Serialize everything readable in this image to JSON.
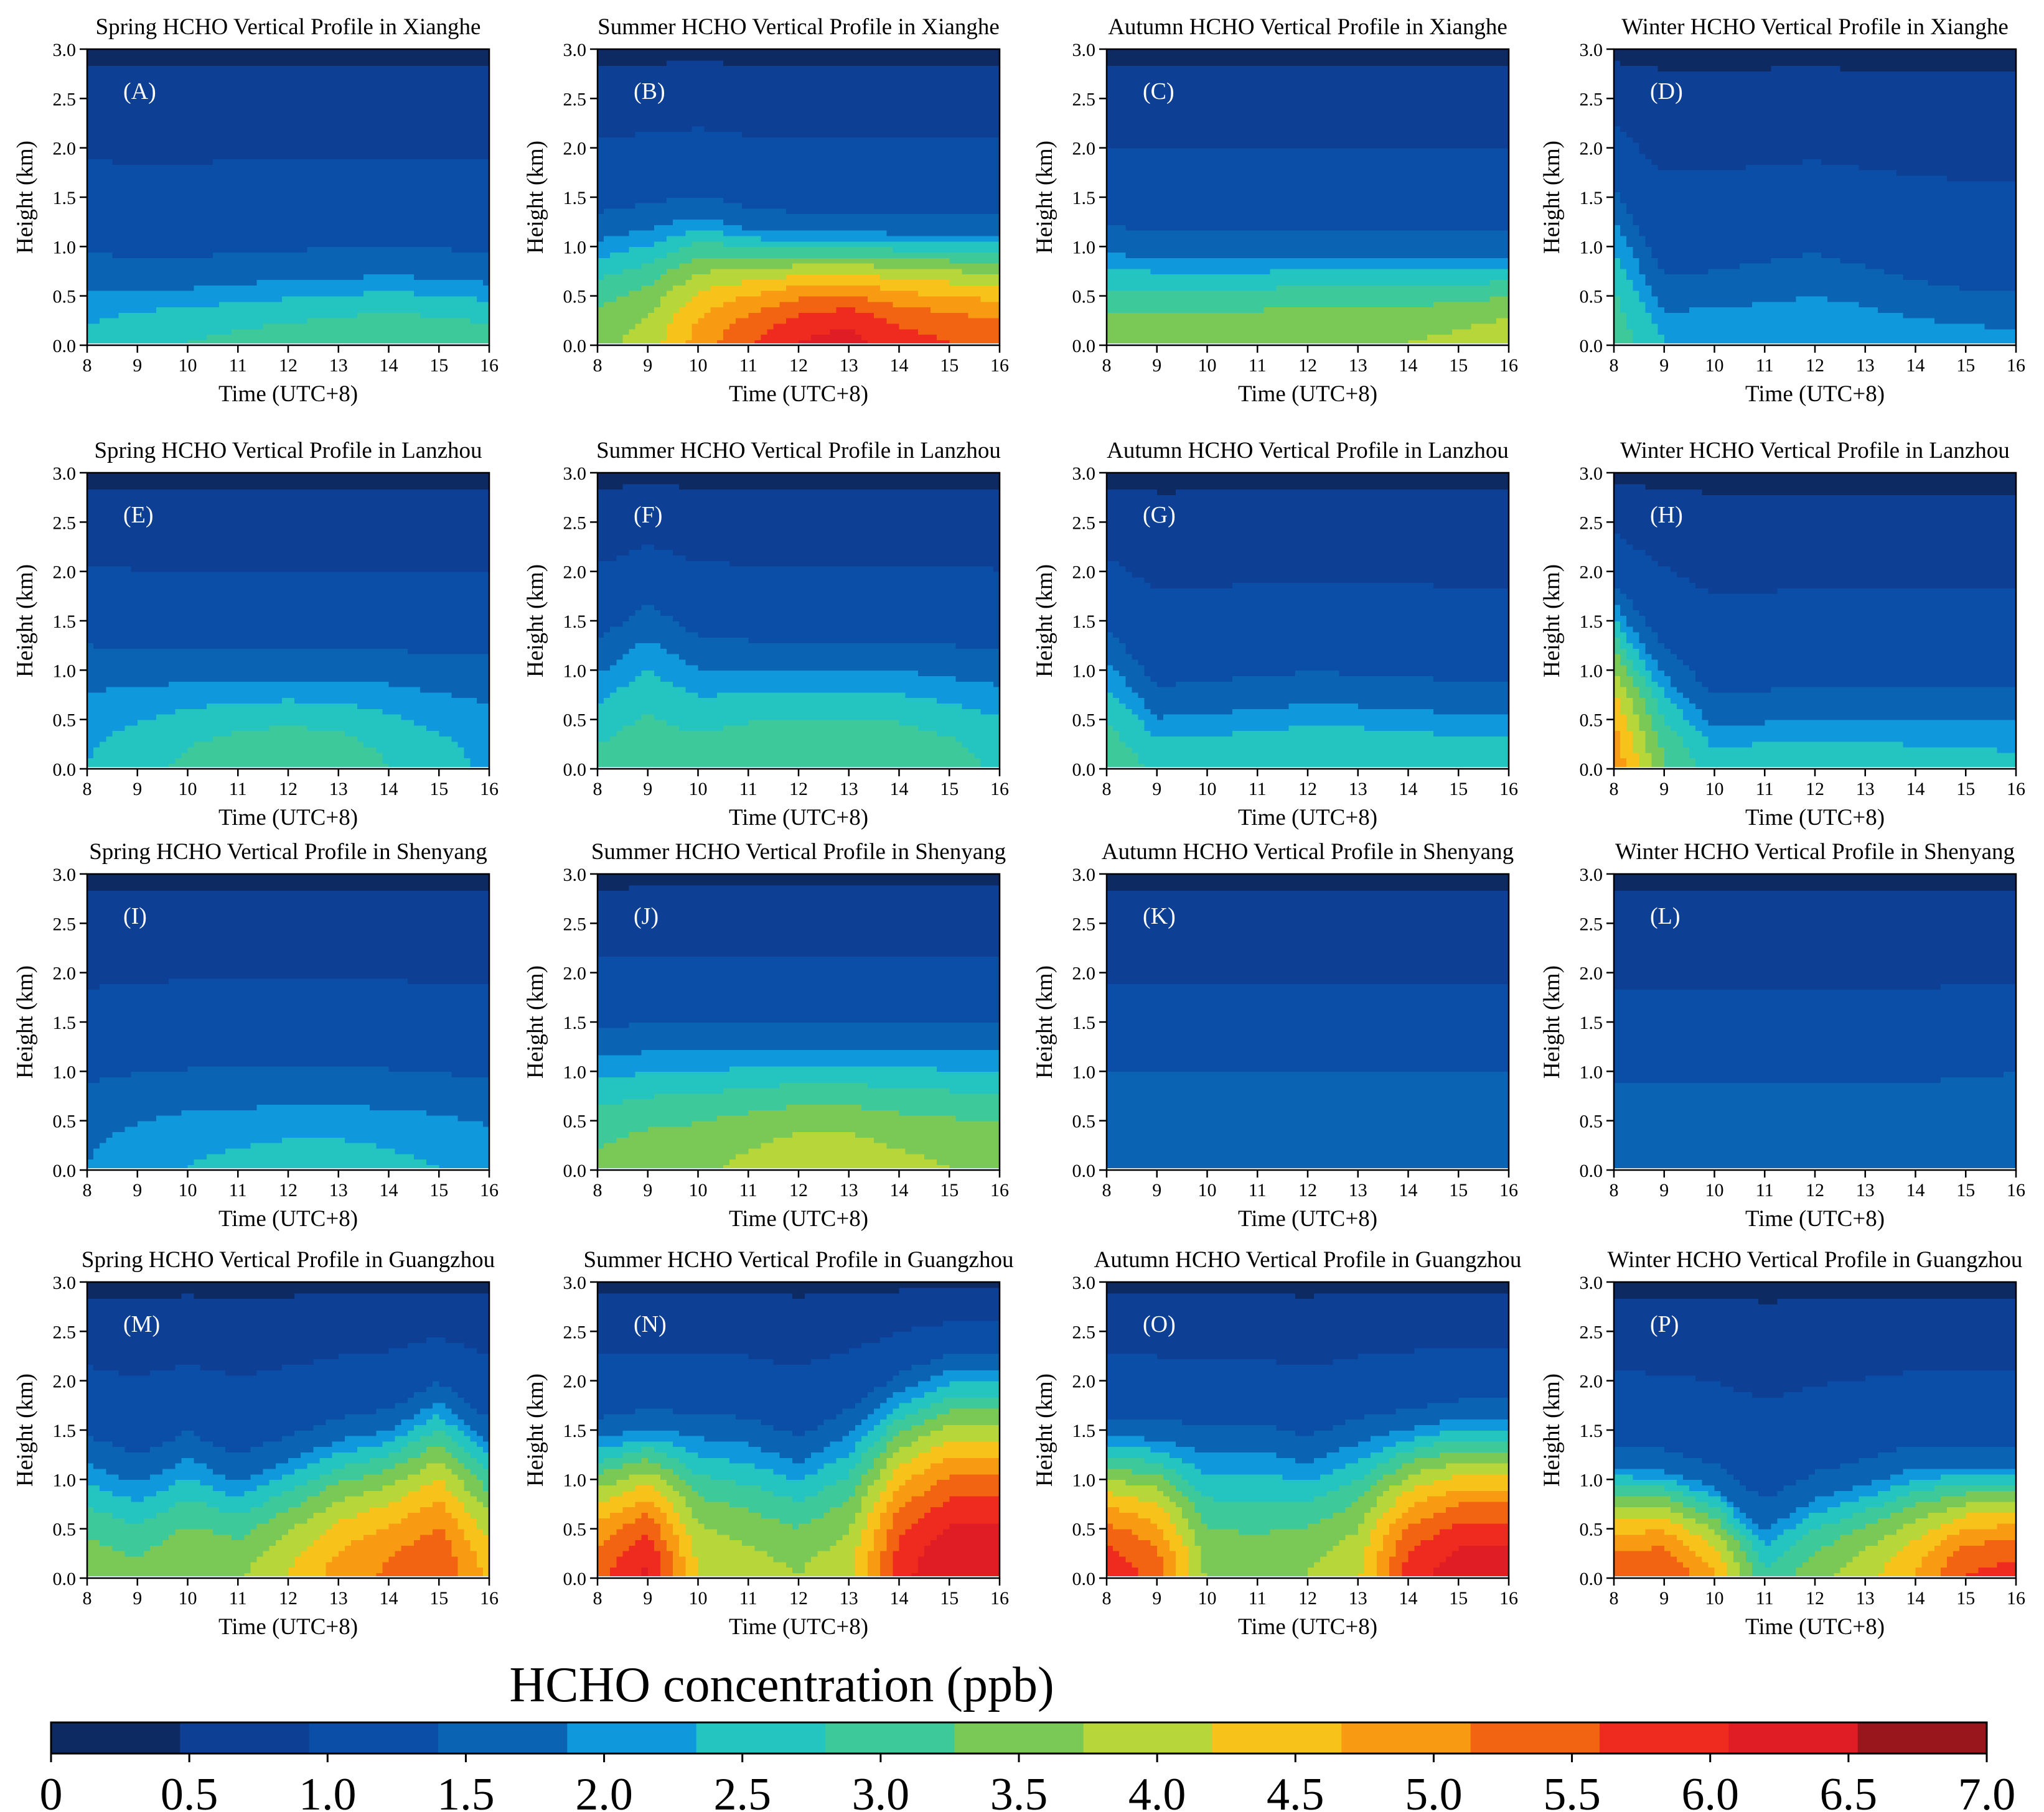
{
  "figure": {
    "colorbar_title": "HCHO concentration (ppb)",
    "colorbar_ticks": [
      "0",
      "0.5",
      "1.0",
      "1.5",
      "2.0",
      "2.5",
      "3.0",
      "3.5",
      "4.0",
      "4.5",
      "5.0",
      "5.5",
      "6.0",
      "6.5",
      "7.0"
    ],
    "colorbar_colors": [
      "#0d2a63",
      "#0d3f94",
      "#0b4ea8",
      "#0b63b4",
      "#0f99dc",
      "#24c4c0",
      "#3ec99a",
      "#7ac855",
      "#b7d63a",
      "#f7c31a",
      "#f89a12",
      "#f36412",
      "#ef2a1e",
      "#e01c25",
      "#98161c"
    ]
  },
  "chart_data": [
    {
      "type": "heatmap",
      "panel": "(A)",
      "title": "Spring HCHO Vertical Profile in Xianghe",
      "xlabel": "Time (UTC+8)",
      "ylabel": "Height (km)",
      "x": [
        8,
        9,
        10,
        11,
        12,
        13,
        14,
        15,
        16
      ],
      "yticks": [
        "0.0",
        "0.5",
        "1.0",
        "1.5",
        "2.0",
        "2.5",
        "3.0"
      ],
      "xlim": [
        8,
        16
      ],
      "ylim": [
        0,
        3
      ],
      "surface_ppb": [
        2.6,
        2.9,
        3.0,
        3.1,
        3.2,
        3.3,
        3.4,
        3.3,
        3.2
      ],
      "layer_depth_km": [
        0.75,
        0.7,
        0.7,
        0.75,
        0.78,
        0.8,
        0.82,
        0.8,
        0.75
      ]
    },
    {
      "type": "heatmap",
      "panel": "(B)",
      "title": "Summer HCHO Vertical Profile in Xianghe",
      "xlabel": "Time (UTC+8)",
      "ylabel": "Height (km)",
      "x": [
        8,
        9,
        10,
        11,
        12,
        13,
        14,
        15,
        16
      ],
      "yticks": [
        "0.0",
        "0.5",
        "1.0",
        "1.5",
        "2.0",
        "2.5",
        "3.0"
      ],
      "xlim": [
        8,
        16
      ],
      "ylim": [
        0,
        3
      ],
      "surface_ppb": [
        3.8,
        4.2,
        5.2,
        5.9,
        6.5,
        6.7,
        6.2,
        6.0,
        5.8
      ],
      "layer_depth_km": [
        1.2,
        1.3,
        1.4,
        1.25,
        1.2,
        1.2,
        1.2,
        1.2,
        1.2
      ]
    },
    {
      "type": "heatmap",
      "panel": "(C)",
      "title": "Autumn HCHO Vertical Profile in Xianghe",
      "xlabel": "Time (UTC+8)",
      "ylabel": "Height (km)",
      "x": [
        8,
        9,
        10,
        11,
        12,
        13,
        14,
        15,
        16
      ],
      "yticks": [
        "0.0",
        "0.5",
        "1.0",
        "1.5",
        "2.0",
        "2.5",
        "3.0"
      ],
      "xlim": [
        8,
        16
      ],
      "ylim": [
        0,
        3
      ],
      "surface_ppb": [
        3.8,
        3.9,
        3.9,
        3.9,
        4.0,
        4.0,
        4.0,
        4.1,
        4.3
      ],
      "layer_depth_km": [
        1.05,
        1.0,
        1.0,
        1.0,
        1.0,
        1.0,
        1.0,
        1.0,
        1.0
      ]
    },
    {
      "type": "heatmap",
      "panel": "(D)",
      "title": "Winter HCHO Vertical Profile in Xianghe",
      "xlabel": "Time (UTC+8)",
      "ylabel": "Height (km)",
      "x": [
        8,
        9,
        10,
        11,
        12,
        13,
        14,
        15,
        16
      ],
      "yticks": [
        "0.0",
        "0.5",
        "1.0",
        "1.5",
        "2.0",
        "2.5",
        "3.0"
      ],
      "xlim": [
        8,
        16
      ],
      "ylim": [
        0,
        3
      ],
      "surface_ppb": [
        3.3,
        2.5,
        2.4,
        2.4,
        2.4,
        2.4,
        2.3,
        2.3,
        2.2
      ],
      "layer_depth_km": [
        1.5,
        0.5,
        0.55,
        0.65,
        0.75,
        0.6,
        0.45,
        0.35,
        0.3
      ]
    },
    {
      "type": "heatmap",
      "panel": "(E)",
      "title": "Spring HCHO Vertical Profile in Lanzhou",
      "xlabel": "Time (UTC+8)",
      "ylabel": "Height (km)",
      "x": [
        8,
        9,
        10,
        11,
        12,
        13,
        14,
        15,
        16
      ],
      "yticks": [
        "0.0",
        "0.5",
        "1.0",
        "1.5",
        "2.0",
        "2.5",
        "3.0"
      ],
      "xlim": [
        8,
        16
      ],
      "ylim": [
        0,
        3
      ],
      "surface_ppb": [
        2.5,
        2.8,
        3.1,
        3.3,
        3.4,
        3.3,
        3.0,
        2.7,
        2.4
      ],
      "layer_depth_km": [
        1.1,
        1.05,
        1.05,
        1.05,
        1.05,
        1.05,
        1.05,
        1.0,
        1.0
      ]
    },
    {
      "type": "heatmap",
      "panel": "(F)",
      "title": "Summer HCHO Vertical Profile in Lanzhou",
      "xlabel": "Time (UTC+8)",
      "ylabel": "Height (km)",
      "x": [
        8,
        9,
        10,
        11,
        12,
        13,
        14,
        15,
        16
      ],
      "yticks": [
        "0.0",
        "0.5",
        "1.0",
        "1.5",
        "2.0",
        "2.5",
        "3.0"
      ],
      "xlim": [
        8,
        16
      ],
      "ylim": [
        0,
        3
      ],
      "surface_ppb": [
        3.1,
        3.3,
        3.2,
        3.4,
        3.5,
        3.5,
        3.4,
        3.2,
        2.9
      ],
      "layer_depth_km": [
        1.15,
        1.55,
        1.2,
        1.15,
        1.15,
        1.15,
        1.15,
        1.1,
        1.05
      ]
    },
    {
      "type": "heatmap",
      "panel": "(G)",
      "title": "Autumn HCHO Vertical Profile in Lanzhou",
      "xlabel": "Time (UTC+8)",
      "ylabel": "Height (km)",
      "x": [
        8,
        9,
        10,
        11,
        12,
        13,
        14,
        15,
        16
      ],
      "yticks": [
        "0.0",
        "0.5",
        "1.0",
        "1.5",
        "2.0",
        "2.5",
        "3.0"
      ],
      "xlim": [
        8,
        16
      ],
      "ylim": [
        0,
        3
      ],
      "surface_ppb": [
        3.3,
        2.9,
        2.9,
        2.9,
        3.0,
        3.0,
        2.9,
        2.9,
        2.8
      ],
      "layer_depth_km": [
        1.3,
        0.65,
        0.7,
        0.75,
        0.8,
        0.78,
        0.75,
        0.7,
        0.7
      ]
    },
    {
      "type": "heatmap",
      "panel": "(H)",
      "title": "Winter HCHO Vertical Profile in Lanzhou",
      "xlabel": "Time (UTC+8)",
      "ylabel": "Height (km)",
      "x": [
        8,
        9,
        10,
        11,
        12,
        13,
        14,
        15,
        16
      ],
      "yticks": [
        "0.0",
        "0.5",
        "1.0",
        "1.5",
        "2.0",
        "2.5",
        "3.0"
      ],
      "xlim": [
        8,
        16
      ],
      "ylim": [
        0,
        3
      ],
      "surface_ppb": [
        5.4,
        3.5,
        2.7,
        2.8,
        2.8,
        2.8,
        2.7,
        2.7,
        2.6
      ],
      "layer_depth_km": [
        1.8,
        1.1,
        0.55,
        0.6,
        0.65,
        0.65,
        0.65,
        0.65,
        0.65
      ]
    },
    {
      "type": "heatmap",
      "panel": "(I)",
      "title": "Spring HCHO Vertical Profile in Shenyang",
      "xlabel": "Time (UTC+8)",
      "ylabel": "Height (km)",
      "x": [
        8,
        9,
        10,
        11,
        12,
        13,
        14,
        15,
        16
      ],
      "yticks": [
        "0.0",
        "0.5",
        "1.0",
        "1.5",
        "2.0",
        "2.5",
        "3.0"
      ],
      "xlim": [
        8,
        16
      ],
      "ylim": [
        0,
        3
      ],
      "surface_ppb": [
        2.0,
        2.3,
        2.5,
        2.6,
        2.7,
        2.7,
        2.6,
        2.5,
        2.3
      ],
      "layer_depth_km": [
        0.7,
        0.8,
        0.85,
        0.85,
        0.85,
        0.85,
        0.85,
        0.8,
        0.75
      ]
    },
    {
      "type": "heatmap",
      "panel": "(J)",
      "title": "Summer HCHO Vertical Profile in Shenyang",
      "xlabel": "Time (UTC+8)",
      "ylabel": "Height (km)",
      "x": [
        8,
        9,
        10,
        11,
        12,
        13,
        14,
        15,
        16
      ],
      "yticks": [
        "0.0",
        "0.5",
        "1.0",
        "1.5",
        "2.0",
        "2.5",
        "3.0"
      ],
      "xlim": [
        8,
        16
      ],
      "ylim": [
        0,
        3
      ],
      "surface_ppb": [
        3.6,
        3.8,
        3.9,
        4.1,
        4.3,
        4.3,
        4.1,
        4.0,
        3.9
      ],
      "layer_depth_km": [
        1.3,
        1.35,
        1.35,
        1.35,
        1.35,
        1.35,
        1.35,
        1.35,
        1.35
      ]
    },
    {
      "type": "heatmap",
      "panel": "(K)",
      "title": "Autumn HCHO Vertical Profile in Shenyang",
      "xlabel": "Time (UTC+8)",
      "ylabel": "Height (km)",
      "x": [
        8,
        9,
        10,
        11,
        12,
        13,
        14,
        15,
        16
      ],
      "yticks": [
        "0.0",
        "0.5",
        "1.0",
        "1.5",
        "2.0",
        "2.5",
        "3.0"
      ],
      "xlim": [
        8,
        16
      ],
      "ylim": [
        0,
        3
      ],
      "surface_ppb": [
        1.6,
        1.6,
        1.6,
        1.6,
        1.7,
        1.8,
        1.8,
        1.7,
        1.6
      ],
      "layer_depth_km": [
        0.8,
        0.8,
        0.8,
        0.8,
        0.8,
        0.8,
        0.8,
        0.8,
        0.8
      ]
    },
    {
      "type": "heatmap",
      "panel": "(L)",
      "title": "Winter HCHO Vertical Profile in Shenyang",
      "xlabel": "Time (UTC+8)",
      "ylabel": "Height (km)",
      "x": [
        8,
        9,
        10,
        11,
        12,
        13,
        14,
        15,
        16
      ],
      "yticks": [
        "0.0",
        "0.5",
        "1.0",
        "1.5",
        "2.0",
        "2.5",
        "3.0"
      ],
      "xlim": [
        8,
        16
      ],
      "ylim": [
        0,
        3
      ],
      "surface_ppb": [
        1.6,
        1.6,
        1.6,
        1.6,
        1.6,
        1.6,
        1.6,
        1.7,
        1.8
      ],
      "layer_depth_km": [
        0.7,
        0.7,
        0.7,
        0.7,
        0.7,
        0.7,
        0.7,
        0.75,
        0.8
      ]
    },
    {
      "type": "heatmap",
      "panel": "(M)",
      "title": "Spring HCHO Vertical Profile in Guangzhou",
      "xlabel": "Time (UTC+8)",
      "ylabel": "Height (km)",
      "x": [
        8,
        9,
        10,
        11,
        12,
        13,
        14,
        15,
        16
      ],
      "yticks": [
        "0.0",
        "0.5",
        "1.0",
        "1.5",
        "2.0",
        "2.5",
        "3.0"
      ],
      "xlim": [
        8,
        16
      ],
      "ylim": [
        0,
        3
      ],
      "surface_ppb": [
        3.8,
        3.6,
        4.0,
        3.9,
        4.5,
        5.2,
        5.6,
        6.0,
        4.8
      ],
      "layer_depth_km": [
        1.3,
        1.1,
        1.35,
        1.1,
        1.3,
        1.5,
        1.6,
        1.9,
        1.5
      ]
    },
    {
      "type": "heatmap",
      "panel": "(N)",
      "title": "Summer HCHO Vertical Profile in Guangzhou",
      "xlabel": "Time (UTC+8)",
      "ylabel": "Height (km)",
      "x": [
        8,
        9,
        10,
        11,
        12,
        13,
        14,
        15,
        16
      ],
      "yticks": [
        "0.0",
        "0.5",
        "1.0",
        "1.5",
        "2.0",
        "2.5",
        "3.0"
      ],
      "xlim": [
        8,
        16
      ],
      "ylim": [
        0,
        3
      ],
      "surface_ppb": [
        5.8,
        6.6,
        4.5,
        4.2,
        4.0,
        4.3,
        6.3,
        7.0,
        7.0
      ],
      "layer_depth_km": [
        1.5,
        1.6,
        1.55,
        1.5,
        1.3,
        1.6,
        2.0,
        2.2,
        2.2
      ]
    },
    {
      "type": "heatmap",
      "panel": "(O)",
      "title": "Autumn HCHO Vertical Profile in Guangzhou",
      "xlabel": "Time (UTC+8)",
      "ylabel": "Height (km)",
      "x": [
        8,
        9,
        10,
        11,
        12,
        13,
        14,
        15,
        16
      ],
      "yticks": [
        "0.0",
        "0.5",
        "1.0",
        "1.5",
        "2.0",
        "2.5",
        "3.0"
      ],
      "xlim": [
        8,
        16
      ],
      "ylim": [
        0,
        3
      ],
      "surface_ppb": [
        6.4,
        5.8,
        3.9,
        3.8,
        4.0,
        4.4,
        6.2,
        6.8,
        6.8
      ],
      "layer_depth_km": [
        1.5,
        1.5,
        1.4,
        1.45,
        1.3,
        1.5,
        1.6,
        1.7,
        1.7
      ]
    },
    {
      "type": "heatmap",
      "panel": "(P)",
      "title": "Winter HCHO Vertical Profile in Guangzhou",
      "xlabel": "Time (UTC+8)",
      "ylabel": "Height (km)",
      "x": [
        8,
        9,
        10,
        11,
        12,
        13,
        14,
        15,
        16
      ],
      "yticks": [
        "0.0",
        "0.5",
        "1.0",
        "1.5",
        "2.0",
        "2.5",
        "3.0"
      ],
      "xlim": [
        8,
        16
      ],
      "ylim": [
        0,
        3
      ],
      "surface_ppb": [
        5.8,
        6.0,
        5.0,
        3.0,
        3.8,
        4.3,
        5.0,
        6.0,
        6.2
      ],
      "layer_depth_km": [
        1.2,
        1.15,
        1.0,
        0.6,
        0.9,
        1.05,
        1.2,
        1.2,
        1.2
      ]
    }
  ]
}
